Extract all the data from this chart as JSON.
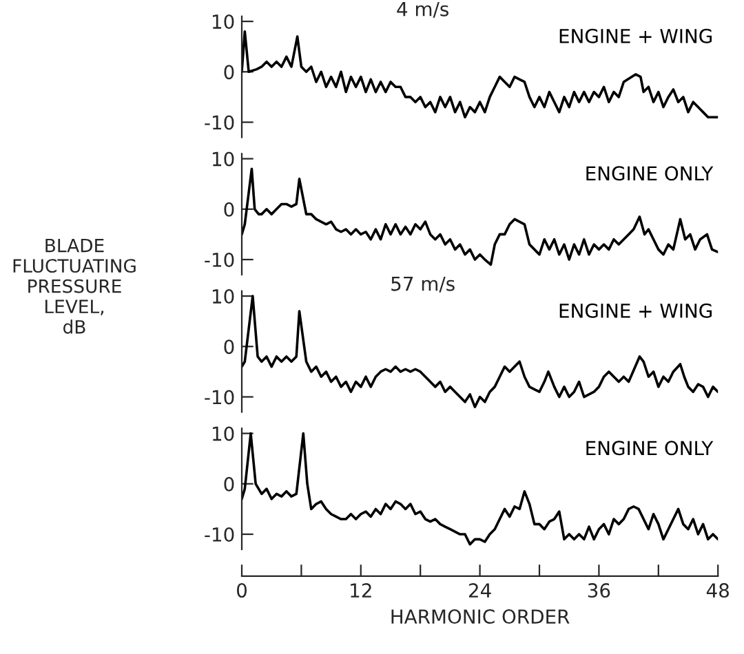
{
  "chart_data": [
    {
      "type": "line",
      "title": "4 m/s",
      "ylabel": "BLADE\nFLUCTUATING\nPRESSURE\nLEVEL,\ndB",
      "xlim": [
        0,
        48
      ],
      "ylim": [
        -13,
        11
      ],
      "yticks": [
        {
          "value": 10,
          "label": "10"
        },
        {
          "value": 0,
          "label": "0"
        },
        {
          "value": -10,
          "label": "-10"
        }
      ],
      "tick_labels": "y",
      "grid": false,
      "legend": false,
      "x": [
        0,
        0.3,
        0.7,
        1.5,
        2,
        2.5,
        3,
        3.5,
        4,
        4.5,
        5,
        5.6,
        6,
        6.5,
        7,
        7.5,
        8,
        8.5,
        9,
        9.5,
        10,
        10.5,
        11,
        11.5,
        12,
        12.5,
        13,
        13.5,
        14,
        14.5,
        15,
        15.5,
        16,
        16.5,
        17,
        17.5,
        18,
        18.5,
        19,
        19.5,
        20,
        20.5,
        21,
        21.5,
        22,
        22.5,
        23,
        23.5,
        24,
        24.5,
        25,
        25.5,
        26,
        26.5,
        27,
        27.5,
        28,
        28.5,
        29,
        29.5,
        30,
        30.5,
        31,
        31.5,
        32,
        32.5,
        33,
        33.5,
        34,
        34.5,
        35,
        35.5,
        36,
        36.5,
        37,
        37.5,
        38,
        38.5,
        39.7,
        40.2,
        40.5,
        41,
        41.5,
        42,
        42.5,
        43,
        43.5,
        44,
        44.5,
        45,
        45.5,
        46,
        46.5,
        47,
        48
      ],
      "series": [
        {
          "name": "ENGINE + WING",
          "color": "#000000",
          "values": [
            0,
            8,
            0,
            0.5,
            1,
            2,
            1,
            2,
            1,
            3,
            1,
            7,
            1,
            0,
            1,
            -2,
            0,
            -3,
            -1,
            -3,
            0,
            -4,
            -1,
            -3,
            -1,
            -4,
            -1.5,
            -4,
            -2,
            -4,
            -2,
            -3,
            -3,
            -5,
            -5,
            -6,
            -5,
            -7,
            -6,
            -8,
            -5,
            -7,
            -5,
            -8,
            -6,
            -9,
            -7,
            -8,
            -6,
            -8,
            -5,
            -3,
            -1,
            -2,
            -3,
            -1,
            -1.5,
            -2,
            -5,
            -7,
            -5,
            -7,
            -4,
            -6,
            -8,
            -5,
            -7,
            -4,
            -6,
            -4,
            -6,
            -4,
            -5,
            -3,
            -6,
            -4,
            -5,
            -2,
            -0.5,
            -1,
            -4,
            -3,
            -6,
            -4,
            -7,
            -5,
            -3.5,
            -6,
            -5,
            -8,
            -6,
            -7,
            -8,
            -9,
            -9
          ]
        }
      ]
    },
    {
      "type": "line",
      "xlim": [
        0,
        48
      ],
      "ylim": [
        -13,
        11
      ],
      "yticks": [
        {
          "value": 10,
          "label": "10"
        },
        {
          "value": 0,
          "label": "0"
        },
        {
          "value": -10,
          "label": "-10"
        }
      ],
      "tick_labels": "y",
      "grid": false,
      "legend": false,
      "x": [
        0,
        0.3,
        1,
        1.3,
        1.7,
        2,
        2.5,
        3,
        3.5,
        4,
        4.5,
        5,
        5.5,
        5.8,
        6.5,
        7,
        7.5,
        8,
        8.5,
        9,
        9.5,
        10,
        10.5,
        11,
        11.5,
        12,
        12.5,
        13,
        13.5,
        14,
        14.5,
        15,
        15.5,
        16,
        16.5,
        17,
        17.5,
        18,
        18.5,
        19,
        19.5,
        20,
        20.5,
        21,
        21.5,
        22,
        22.5,
        23,
        23.5,
        24,
        24.5,
        25.1,
        25.5,
        26,
        26.5,
        27,
        27.5,
        28,
        28.5,
        29,
        29.5,
        30,
        30.5,
        31,
        31.5,
        32,
        32.5,
        33,
        33.5,
        34,
        34.5,
        35,
        35.5,
        36,
        36.5,
        37,
        37.5,
        38,
        39,
        39.5,
        40.1,
        40.6,
        41,
        41.5,
        42,
        42.5,
        43,
        43.5,
        44.2,
        44.7,
        45.2,
        45.7,
        46.2,
        46.9,
        47.4,
        48
      ],
      "series": [
        {
          "name": "ENGINE ONLY",
          "color": "#000000",
          "values": [
            -5,
            -3,
            8,
            0,
            -1,
            -1,
            0,
            -1,
            0,
            1,
            1,
            0.5,
            1,
            6,
            -1,
            -1,
            -2,
            -2.5,
            -3,
            -2.5,
            -4,
            -4.5,
            -4,
            -5,
            -4,
            -5,
            -4.5,
            -6,
            -4,
            -6,
            -3,
            -5,
            -3,
            -5,
            -3.5,
            -5,
            -3,
            -4,
            -2.5,
            -5,
            -6,
            -5,
            -7,
            -6,
            -8,
            -7,
            -9,
            -8,
            -10,
            -9,
            -10,
            -11,
            -7,
            -5,
            -5,
            -3,
            -2,
            -2.5,
            -3,
            -7,
            -8,
            -9,
            -6,
            -8,
            -6,
            -9,
            -7,
            -10,
            -7,
            -9,
            -6,
            -9,
            -7,
            -8,
            -7,
            -8,
            -6,
            -7,
            -5,
            -4,
            -1.5,
            -5,
            -4,
            -6,
            -8,
            -9,
            -7,
            -8,
            -2,
            -6,
            -5,
            -8,
            -6,
            -5,
            -8,
            -8.5
          ]
        }
      ]
    },
    {
      "type": "line",
      "title": "57 m/s",
      "xlim": [
        0,
        48
      ],
      "ylim": [
        -13,
        11
      ],
      "yticks": [
        {
          "value": 10,
          "label": "10"
        },
        {
          "value": 0,
          "label": "0"
        },
        {
          "value": -10,
          "label": "-10"
        }
      ],
      "tick_labels": "y",
      "grid": false,
      "legend": false,
      "x": [
        0,
        0.3,
        1.1,
        1.6,
        2,
        2.5,
        3,
        3.5,
        4,
        4.5,
        5,
        5.5,
        5.8,
        6.5,
        7,
        7.5,
        8,
        8.5,
        9,
        9.5,
        10,
        10.5,
        11,
        11.5,
        12,
        12.5,
        13,
        13.5,
        14,
        14.5,
        15,
        15.5,
        16,
        16.5,
        17,
        17.5,
        18,
        18.5,
        19,
        19.5,
        20,
        20.5,
        21,
        21.5,
        22,
        22.5,
        23,
        23.5,
        24,
        24.5,
        25,
        25.5,
        26,
        26.5,
        27,
        27.5,
        28,
        28.5,
        29,
        29.5,
        30,
        30.5,
        30.9,
        31.5,
        32,
        32.5,
        33,
        33.5,
        34,
        34.5,
        35,
        35.5,
        36,
        36.5,
        37,
        37.5,
        38,
        38.5,
        39,
        40.1,
        40.5,
        41,
        41.5,
        42,
        42.5,
        43,
        43.5,
        44.2,
        44.6,
        45,
        45.5,
        46,
        46.5,
        47,
        47.5,
        48
      ],
      "series": [
        {
          "name": "ENGINE + WING",
          "color": "#000000",
          "values": [
            -4,
            -3,
            10,
            -2,
            -3,
            -2,
            -4,
            -2,
            -3,
            -2,
            -3,
            -2,
            7,
            -3,
            -5,
            -4,
            -6,
            -5,
            -7,
            -6,
            -8,
            -7,
            -9,
            -7,
            -8,
            -6,
            -8,
            -6,
            -5,
            -4.5,
            -5,
            -4,
            -5,
            -4.5,
            -5,
            -4.5,
            -5,
            -6,
            -7,
            -8,
            -7,
            -9,
            -8,
            -9,
            -10,
            -11,
            -9.5,
            -12,
            -10,
            -11,
            -9,
            -8,
            -6,
            -4,
            -5,
            -4,
            -3,
            -6,
            -8,
            -8.5,
            -9,
            -7,
            -5,
            -8,
            -10,
            -8,
            -10,
            -9,
            -7,
            -10,
            -9.5,
            -9,
            -8,
            -6,
            -5,
            -6,
            -7,
            -6,
            -7,
            -2,
            -3,
            -6,
            -5,
            -8,
            -6,
            -7,
            -5,
            -3.5,
            -6,
            -8,
            -9,
            -7.5,
            -8,
            -10,
            -8,
            -9
          ]
        }
      ]
    },
    {
      "type": "line",
      "xlabel": "HARMONIC ORDER",
      "xlim": [
        0,
        48
      ],
      "ylim": [
        -13,
        11
      ],
      "xticks": [
        0,
        {
          "value": 6,
          "label": null
        },
        12,
        {
          "value": 18,
          "label": null
        },
        24,
        {
          "value": 30,
          "label": null
        },
        36,
        {
          "value": 42,
          "label": null
        },
        48
      ],
      "yticks": [
        {
          "value": 10,
          "label": "10"
        },
        {
          "value": 0,
          "label": "0"
        },
        {
          "value": -10,
          "label": "-10"
        }
      ],
      "grid": false,
      "legend": false,
      "x": [
        0,
        0.3,
        0.9,
        1.4,
        2,
        2.5,
        3,
        3.5,
        4,
        4.5,
        5,
        5.5,
        6.2,
        6.6,
        7,
        7.5,
        8,
        8.5,
        9,
        9.5,
        10,
        10.5,
        11,
        11.5,
        12,
        12.5,
        13,
        13.5,
        14,
        14.5,
        15,
        15.5,
        16,
        16.5,
        17,
        17.5,
        18,
        18.5,
        19,
        19.5,
        20,
        20.5,
        21,
        21.5,
        22,
        22.5,
        23,
        23.5,
        24,
        24.5,
        25,
        25.5,
        26,
        26.5,
        27,
        27.5,
        28,
        28.5,
        29,
        29.5,
        30,
        30.5,
        31,
        31.5,
        32,
        32.5,
        33,
        33.5,
        34,
        34.5,
        35,
        35.5,
        36,
        36.5,
        37,
        37.5,
        38,
        38.5,
        39,
        39.5,
        40,
        40.5,
        41,
        41.5,
        42,
        42.5,
        43,
        43.5,
        44,
        44.5,
        45,
        45.5,
        46,
        46.5,
        47,
        47.5,
        48
      ],
      "series": [
        {
          "name": "ENGINE ONLY",
          "color": "#000000",
          "values": [
            -3,
            -1,
            10,
            0,
            -2,
            -1,
            -3,
            -2,
            -2.5,
            -1.5,
            -2.5,
            -2,
            10,
            0,
            -5,
            -4,
            -3.5,
            -5,
            -6,
            -6.5,
            -7,
            -7,
            -6,
            -7,
            -6,
            -5.5,
            -6.5,
            -5,
            -6,
            -4,
            -5,
            -3.5,
            -4,
            -5,
            -4,
            -6,
            -5.5,
            -7,
            -7.5,
            -7,
            -8,
            -8.5,
            -9,
            -9.5,
            -10,
            -10,
            -12,
            -11,
            -11,
            -11.5,
            -10,
            -9,
            -7,
            -5,
            -6.5,
            -4.5,
            -5,
            -1.5,
            -4,
            -8,
            -8,
            -9,
            -7.5,
            -7,
            -5.5,
            -11,
            -10,
            -11,
            -10,
            -11,
            -8.5,
            -11,
            -9,
            -8,
            -10,
            -7,
            -8,
            -7,
            -5,
            -4.5,
            -5,
            -7,
            -9,
            -6,
            -8,
            -11,
            -9,
            -7,
            -5,
            -8,
            -9,
            -7,
            -10,
            -8,
            -11,
            -10,
            -11
          ]
        }
      ]
    }
  ]
}
